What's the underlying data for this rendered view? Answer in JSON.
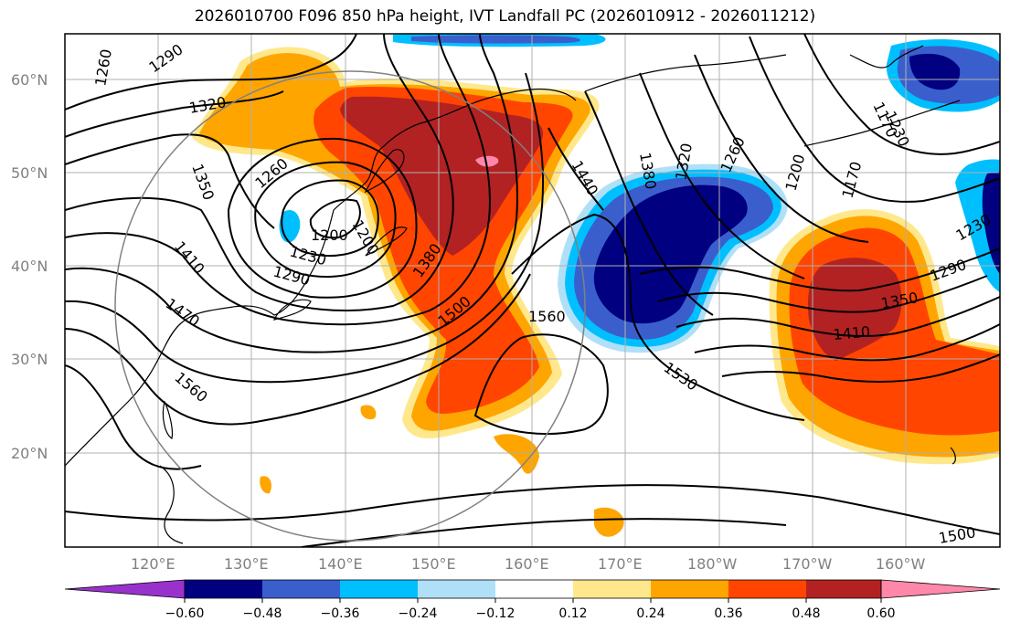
{
  "title": "2026010700 F096 850 hPa height, IVT Landfall PC (2026010912 - 2026011212)",
  "map": {
    "lat_labels": [
      "60°N",
      "50°N",
      "40°N",
      "30°N",
      "20°N"
    ],
    "lon_labels": [
      "120°E",
      "130°E",
      "140°E",
      "150°E",
      "160°E",
      "170°E",
      "180°W",
      "170°W",
      "160°W"
    ],
    "grid": true
  },
  "colorbar": {
    "ticks": [
      "−0.60",
      "−0.48",
      "−0.36",
      "−0.24",
      "−0.12",
      "0.12",
      "0.24",
      "0.36",
      "0.48",
      "0.60"
    ],
    "colors": {
      "lt_neg060": "#9932cc",
      "n060_n048": "#000080",
      "n048_n036": "#3a5fcd",
      "n036_n024": "#00bfff",
      "n024_n012": "#b0e0f8",
      "n012_012": "#ffffff",
      "p012_024": "#ffe88c",
      "p024_036": "#ffa500",
      "p036_048": "#ff4500",
      "p048_060": "#b22222",
      "gt_060": "#ff88aa"
    }
  },
  "contour_labels": [
    "1260",
    "1290",
    "1320",
    "1350",
    "1260",
    "1200",
    "1230",
    "1290",
    "1410",
    "1470",
    "1560",
    "1200",
    "1380",
    "1500",
    "1440",
    "1380",
    "1320",
    "1260",
    "1200",
    "1170",
    "1230",
    "1290",
    "1350",
    "1410",
    "1560",
    "1530",
    "1500",
    "1170",
    "1230"
  ]
}
